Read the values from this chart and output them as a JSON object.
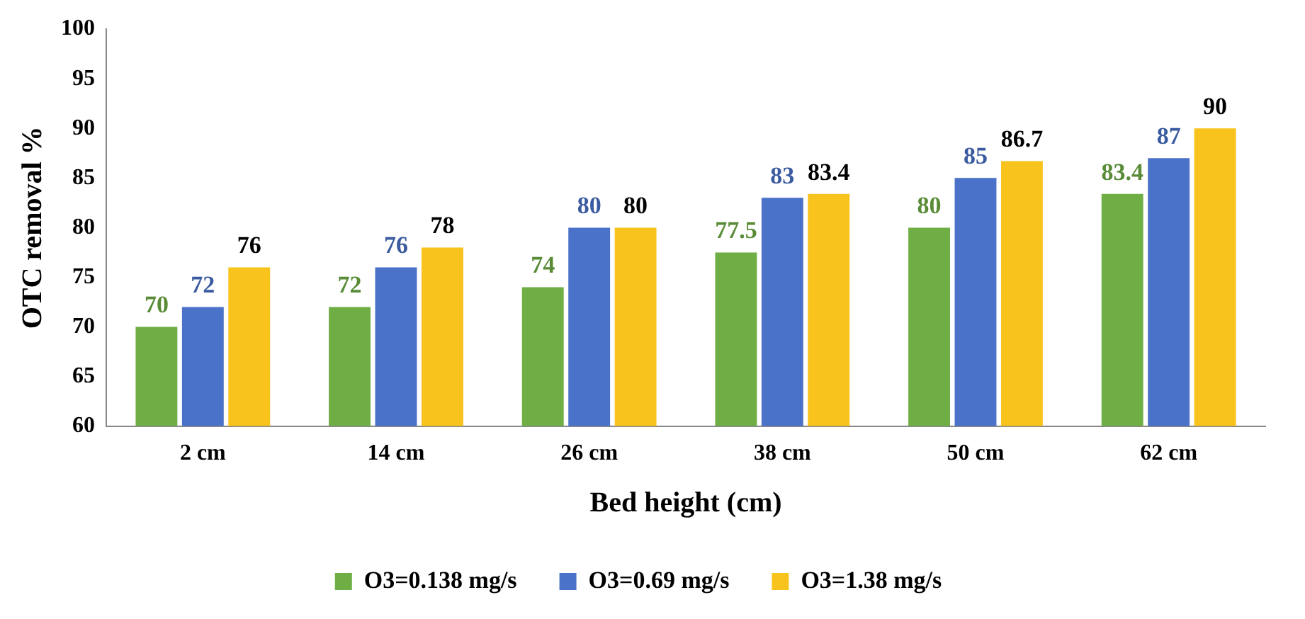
{
  "chart_data": {
    "type": "bar",
    "xlabel": "Bed height (cm)",
    "ylabel": "OTC removal %",
    "categories": [
      "2 cm",
      "14 cm",
      "26 cm",
      "38 cm",
      "50 cm",
      "62 cm"
    ],
    "series": [
      {
        "name": "O3=0.138 mg/s",
        "color": "#6fae45",
        "values": [
          70,
          72,
          74,
          77.5,
          80,
          83.4
        ]
      },
      {
        "name": "O3=0.69 mg/s",
        "color": "#4a72c8",
        "values": [
          72,
          76,
          80,
          83,
          85,
          87
        ]
      },
      {
        "name": "O3=1.38 mg/s",
        "color": "#f7c31c",
        "values": [
          76,
          78,
          80,
          83.4,
          86.7,
          90
        ]
      }
    ],
    "ylim": [
      60,
      100
    ],
    "yticks": [
      60,
      65,
      70,
      75,
      80,
      85,
      90,
      95,
      100
    ],
    "grid": false,
    "legend": "bottom",
    "data_labels": true
  }
}
